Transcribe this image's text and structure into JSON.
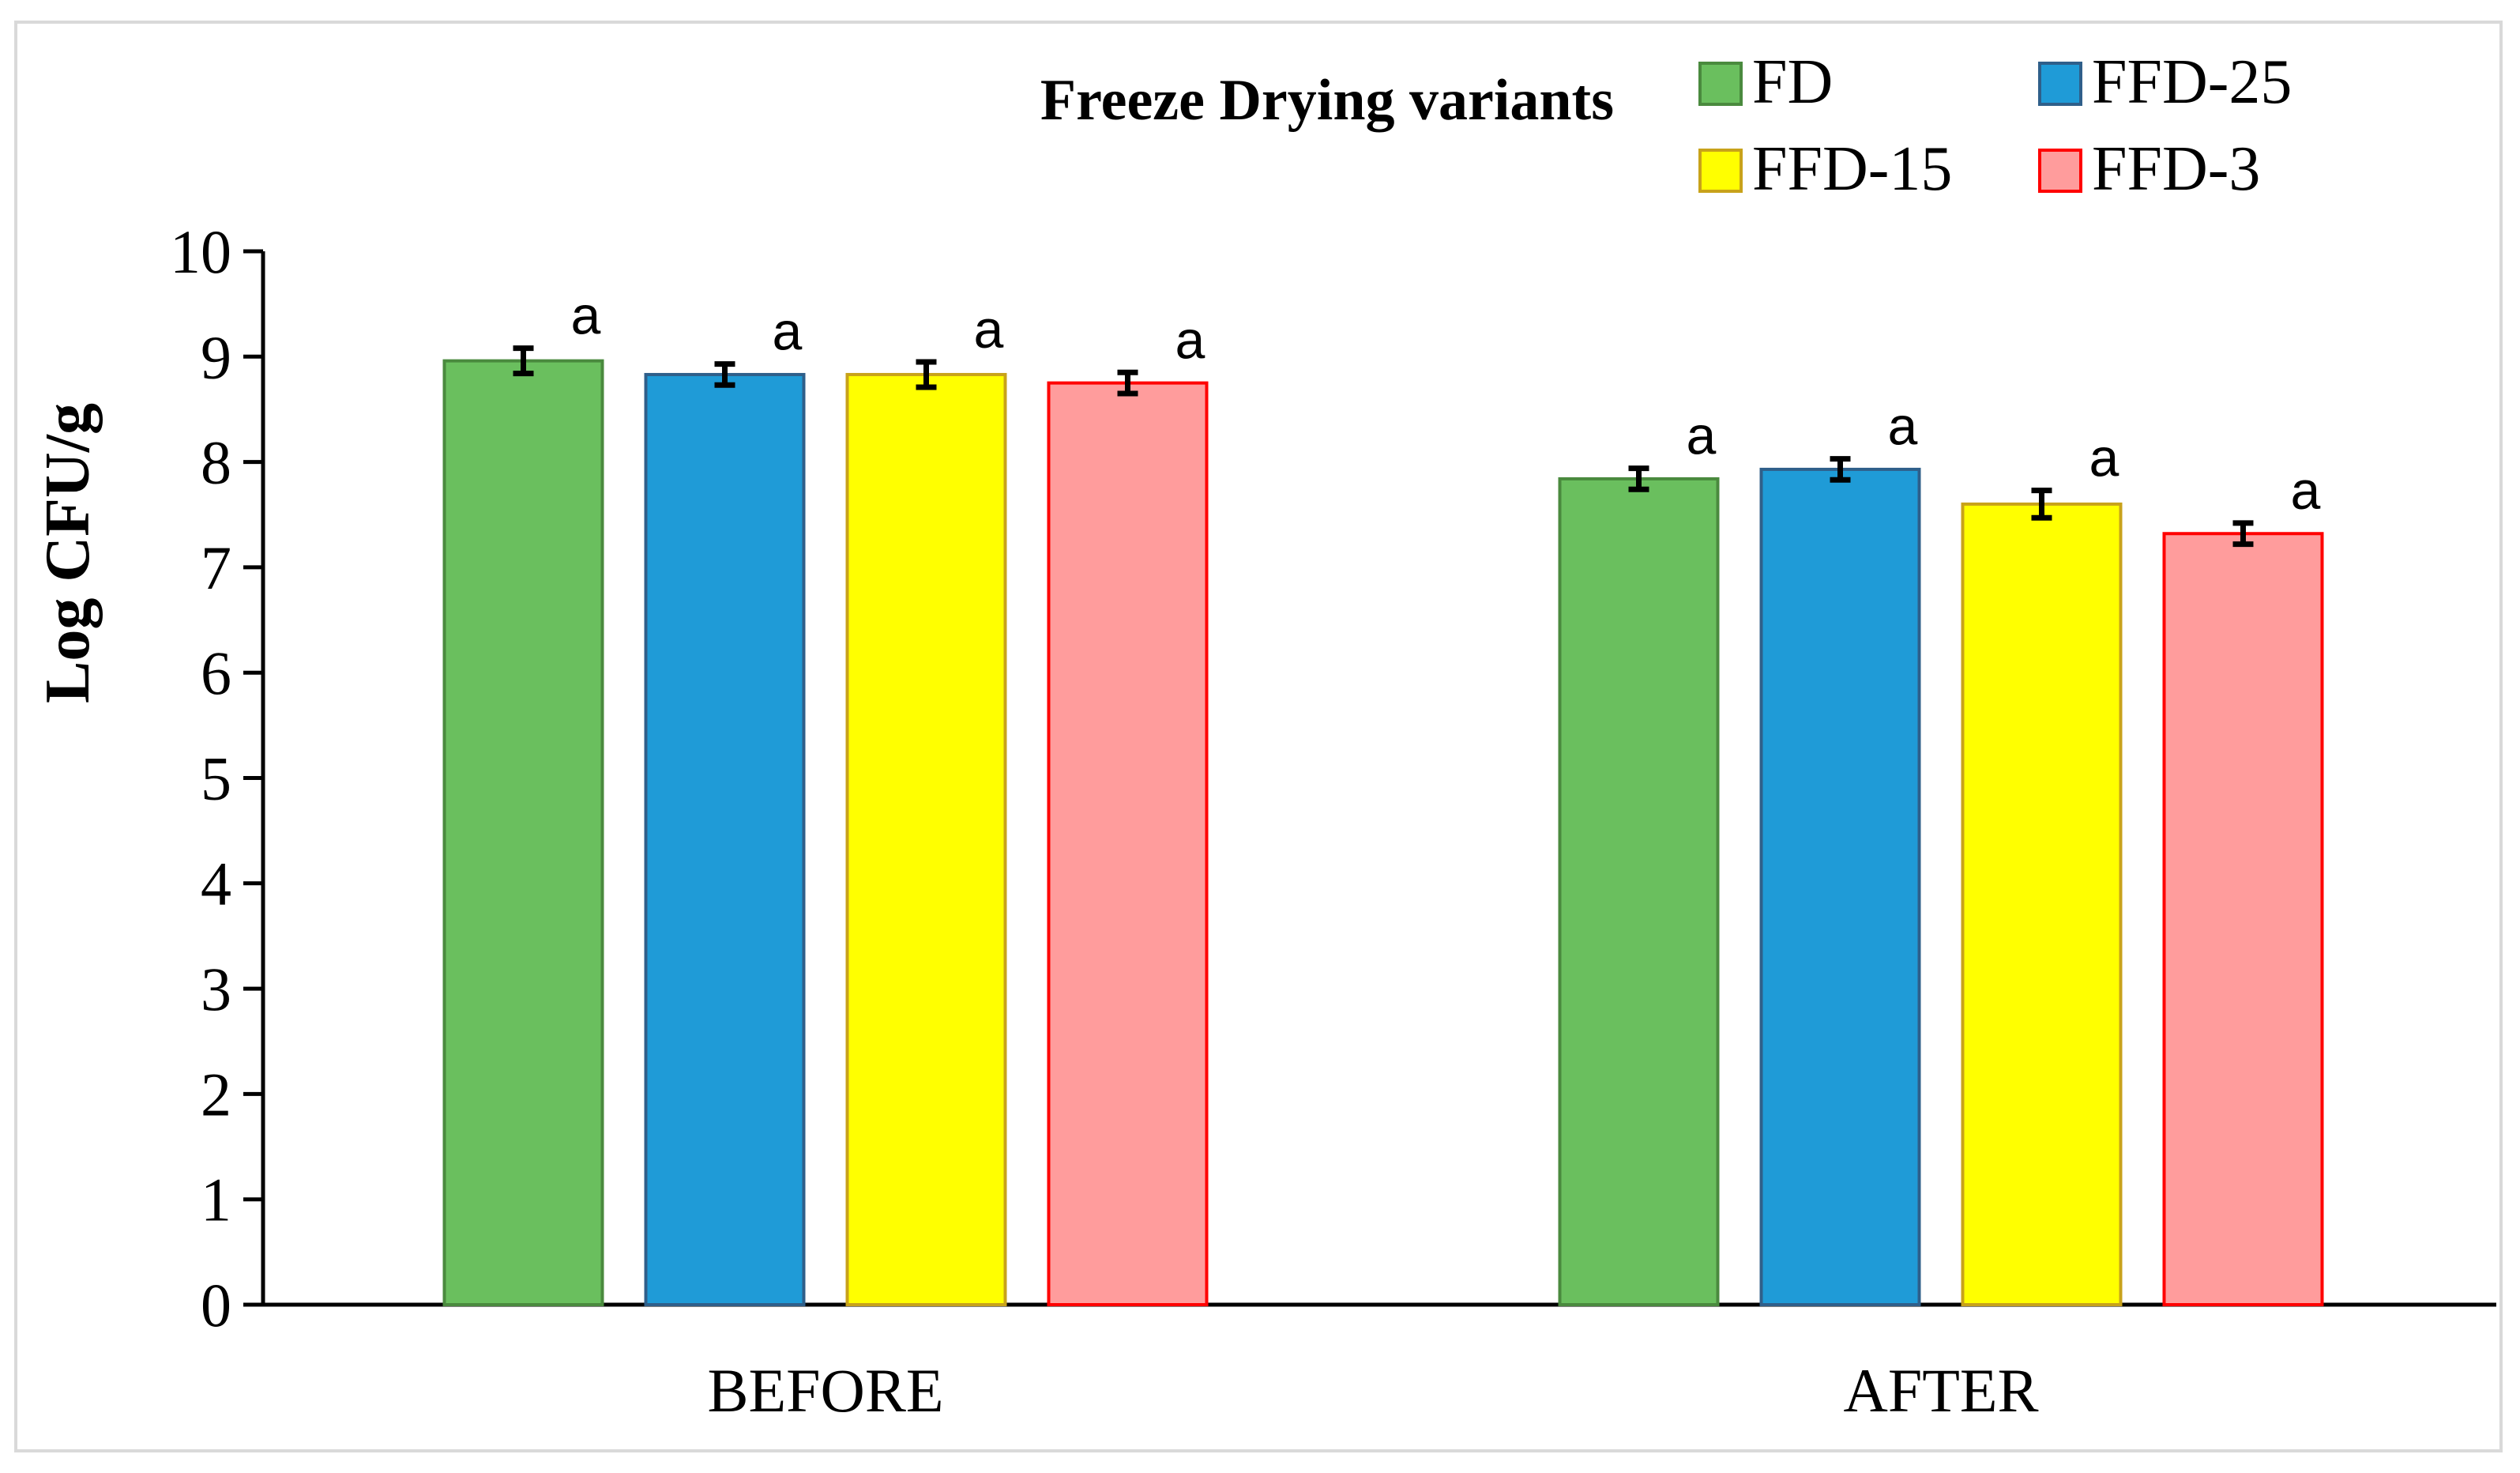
{
  "chart_data": {
    "type": "bar",
    "title": "",
    "legend_title": "Freeze Drying variants",
    "legend_position": "top-right",
    "xlabel": "",
    "ylabel": "Log CFU/g",
    "ylim": [
      0,
      10
    ],
    "yticks": [
      "0",
      "1",
      "2",
      "3",
      "4",
      "5",
      "6",
      "7",
      "8",
      "9",
      "10"
    ],
    "grid": false,
    "categories": [
      "BEFORE",
      "AFTER"
    ],
    "series": [
      {
        "name": "FD",
        "values": [
          8.96,
          7.84
        ],
        "errors": [
          0.12,
          0.1
        ],
        "fill": "#6abf5e",
        "stroke": "#4a8a3e"
      },
      {
        "name": "FFD-25",
        "values": [
          8.83,
          7.93
        ],
        "errors": [
          0.1,
          0.1
        ],
        "fill": "#1f9bd7",
        "stroke": "#2f5f8a"
      },
      {
        "name": "FFD-15",
        "values": [
          8.83,
          7.6
        ],
        "errors": [
          0.12,
          0.13
        ],
        "fill": "#ffff00",
        "stroke": "#c8a21a"
      },
      {
        "name": "FFD-3",
        "values": [
          8.75,
          7.32
        ],
        "errors": [
          0.1,
          0.1
        ],
        "fill": "#ff9c9c",
        "stroke": "#ff0000"
      }
    ],
    "significance_labels": [
      [
        "a",
        "a"
      ],
      [
        "a",
        "a"
      ],
      [
        "a",
        "a"
      ],
      [
        "a",
        "a"
      ]
    ],
    "errorbar_color": "#000000"
  }
}
